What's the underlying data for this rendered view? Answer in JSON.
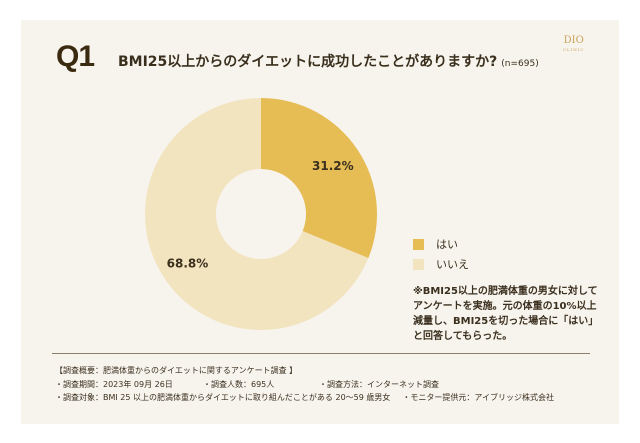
{
  "header": {
    "q_label": "Q1",
    "title": "BMI25以上からのダイエットに成功したことがありますか?",
    "sample": "(n=695)",
    "logo": "DIO",
    "logo_sub": "CLINIC"
  },
  "chart_data": {
    "type": "pie",
    "donut": true,
    "categories": [
      "はい",
      "いいえ"
    ],
    "values": [
      31.2,
      68.8
    ],
    "data_labels": [
      "31.2%",
      "68.8%"
    ],
    "colors": [
      "#e6bd55",
      "#f3e4c0"
    ],
    "legend_position": "right"
  },
  "legend": [
    {
      "label": "はい",
      "color": "#e6bd55"
    },
    {
      "label": "いいえ",
      "color": "#f3e4c0"
    }
  ],
  "note": "※BMI25以上の肥満体重の男女に対してアンケートを実施。元の体重の10%以上減量し、BMI25を切った場合に「はい」と回答してもらった。",
  "survey": {
    "heading": "【調査概要：肥満体重からのダイエットに関するアンケート調査 】",
    "period": "・調査期間：2023年 09月 26日",
    "count": "・調査人数：695人",
    "method": "・調査方法：インターネット調査",
    "target": "・調査対象：BMI 25 以上の肥満体重からダイエットに取り組んだことがある 20～59 歳男女",
    "provider": "・モニター提供元：アイブリッジ株式会社"
  }
}
